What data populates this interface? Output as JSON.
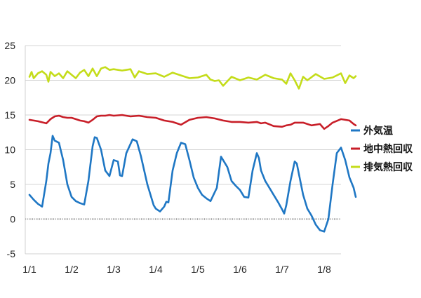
{
  "chart_data": {
    "type": "line",
    "title": "",
    "xlabel": "",
    "ylabel": "",
    "ylim": [
      -5,
      25
    ],
    "yticks": [
      "25",
      "20",
      "15",
      "10",
      "5",
      "0",
      "-5"
    ],
    "xlim": [
      0,
      7.75
    ],
    "xticks": [
      "1/1",
      "1/2",
      "1/3",
      "1/4",
      "1/5",
      "1/6",
      "1/7",
      "1/8"
    ],
    "grid": "horizontal",
    "legend_position": "right",
    "series": [
      {
        "name": "外気温",
        "color": "#1f77c4",
        "x": [
          0,
          0.1,
          0.2,
          0.3,
          0.4,
          0.45,
          0.5,
          0.55,
          0.6,
          0.7,
          0.8,
          0.9,
          1.0,
          1.1,
          1.2,
          1.3,
          1.4,
          1.5,
          1.55,
          1.6,
          1.7,
          1.8,
          1.9,
          2.0,
          2.1,
          2.15,
          2.2,
          2.3,
          2.45,
          2.55,
          2.65,
          2.8,
          2.95,
          3.0,
          3.1,
          3.2,
          3.25,
          3.3,
          3.4,
          3.5,
          3.6,
          3.7,
          3.8,
          3.9,
          4.0,
          4.1,
          4.2,
          4.3,
          4.45,
          4.55,
          4.65,
          4.7,
          4.75,
          4.8,
          4.9,
          5.0,
          5.1,
          5.2,
          5.3,
          5.4,
          5.45,
          5.5,
          5.6,
          5.7,
          5.8,
          5.9,
          6.0,
          6.05,
          6.1,
          6.2,
          6.3,
          6.35,
          6.4,
          6.5,
          6.6,
          6.7,
          6.8,
          6.9,
          7.0,
          7.1,
          7.2,
          7.3,
          7.4,
          7.5,
          7.6,
          7.7,
          7.75
        ],
        "values": [
          3.5,
          2.8,
          2.2,
          1.8,
          5.5,
          8.0,
          9.5,
          12.0,
          11.3,
          11.0,
          8.5,
          5.0,
          3.2,
          2.6,
          2.3,
          2.1,
          5.5,
          10.5,
          11.8,
          11.7,
          10.0,
          7.0,
          6.2,
          8.5,
          8.3,
          6.3,
          6.2,
          9.5,
          11.5,
          11.2,
          9.0,
          5.0,
          2.0,
          1.5,
          1.1,
          1.8,
          2.5,
          2.4,
          7.0,
          9.5,
          11.0,
          10.8,
          8.5,
          6.0,
          4.5,
          3.5,
          3.0,
          2.6,
          4.5,
          9.0,
          8.0,
          7.5,
          6.5,
          5.5,
          4.8,
          4.2,
          3.2,
          3.1,
          7.0,
          9.5,
          8.8,
          7.0,
          5.5,
          4.5,
          3.5,
          2.5,
          1.4,
          0.8,
          2.0,
          5.5,
          8.3,
          8.0,
          6.5,
          3.5,
          1.5,
          0.5,
          -0.8,
          -1.6,
          -1.8,
          0.0,
          5.0,
          9.5,
          10.3,
          8.5,
          6.0,
          4.5,
          3.2
        ]
      },
      {
        "name": "地中熱回収",
        "color": "#c81e28",
        "x": [
          0,
          0.2,
          0.4,
          0.5,
          0.6,
          0.7,
          0.8,
          0.9,
          1.0,
          1.1,
          1.2,
          1.3,
          1.4,
          1.5,
          1.6,
          1.7,
          1.8,
          1.9,
          2.0,
          2.2,
          2.4,
          2.6,
          2.8,
          3.0,
          3.2,
          3.4,
          3.6,
          3.8,
          4.0,
          4.2,
          4.4,
          4.6,
          4.8,
          5.0,
          5.2,
          5.4,
          5.5,
          5.6,
          5.8,
          6.0,
          6.1,
          6.2,
          6.3,
          6.5,
          6.7,
          6.9,
          7.0,
          7.1,
          7.2,
          7.4,
          7.6,
          7.7,
          7.75
        ],
        "values": [
          14.3,
          14.1,
          13.8,
          14.4,
          14.8,
          14.9,
          14.7,
          14.6,
          14.6,
          14.4,
          14.2,
          14.1,
          13.9,
          14.3,
          14.8,
          14.9,
          14.9,
          15.0,
          14.9,
          15.0,
          14.8,
          14.9,
          14.7,
          14.6,
          14.2,
          14.0,
          13.6,
          14.3,
          14.6,
          14.7,
          14.5,
          14.2,
          14.0,
          14.0,
          13.9,
          14.0,
          13.8,
          13.9,
          13.4,
          13.3,
          13.5,
          13.6,
          13.9,
          13.9,
          13.5,
          13.7,
          13.0,
          13.4,
          13.9,
          14.4,
          14.2,
          13.7,
          13.5
        ]
      },
      {
        "name": "排気熱回収",
        "color": "#c4dc1a",
        "x": [
          0,
          0.05,
          0.1,
          0.2,
          0.3,
          0.4,
          0.45,
          0.5,
          0.6,
          0.7,
          0.8,
          0.9,
          1.0,
          1.1,
          1.2,
          1.3,
          1.4,
          1.5,
          1.6,
          1.7,
          1.8,
          1.9,
          2.0,
          2.2,
          2.4,
          2.5,
          2.6,
          2.8,
          3.0,
          3.2,
          3.4,
          3.6,
          3.8,
          4.0,
          4.2,
          4.3,
          4.4,
          4.5,
          4.6,
          4.8,
          5.0,
          5.2,
          5.4,
          5.6,
          5.8,
          6.0,
          6.1,
          6.2,
          6.3,
          6.4,
          6.5,
          6.6,
          6.8,
          7.0,
          7.2,
          7.4,
          7.5,
          7.6,
          7.7,
          7.75
        ],
        "values": [
          20.5,
          21.2,
          20.3,
          21.0,
          21.3,
          20.8,
          19.8,
          21.2,
          20.6,
          21.0,
          20.3,
          21.3,
          20.8,
          20.3,
          21.1,
          21.5,
          20.6,
          21.7,
          20.6,
          21.7,
          21.9,
          21.5,
          21.6,
          21.4,
          21.6,
          20.4,
          21.3,
          20.9,
          21.0,
          20.5,
          21.1,
          20.7,
          20.3,
          20.4,
          20.8,
          20.1,
          19.9,
          20.0,
          19.2,
          20.5,
          20.0,
          20.4,
          20.1,
          20.8,
          20.3,
          20.1,
          19.5,
          21.0,
          20.0,
          18.8,
          20.5,
          20.0,
          20.9,
          20.2,
          20.4,
          21.0,
          19.6,
          20.7,
          20.3,
          20.6
        ]
      }
    ]
  }
}
